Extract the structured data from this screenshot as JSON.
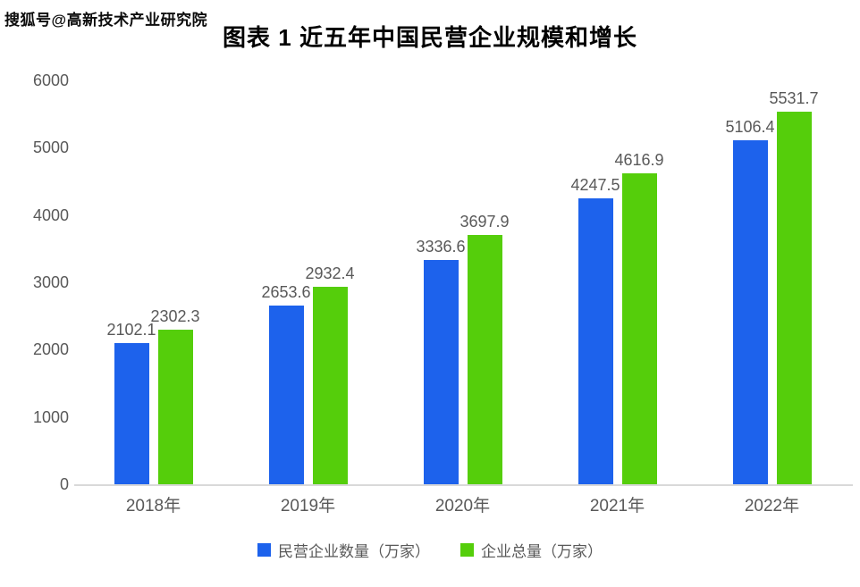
{
  "watermark": "搜狐号@高新技术产业研究院",
  "title": "图表 1 近五年中国民营企业规模和增长",
  "chart_data": {
    "type": "bar",
    "title": "图表 1 近五年中国民营企业规模和增长",
    "categories": [
      "2018年",
      "2019年",
      "2020年",
      "2021年",
      "2022年"
    ],
    "series": [
      {
        "name": "民营企业数量（万家）",
        "color": "#1d62ec",
        "values": [
          2102.1,
          2653.6,
          3336.6,
          4247.5,
          5106.4
        ]
      },
      {
        "name": "企业总量（万家）",
        "color": "#55ce0b",
        "values": [
          2302.3,
          2932.4,
          3697.9,
          4616.9,
          5531.7
        ]
      }
    ],
    "xlabel": "",
    "ylabel": "",
    "ylim": [
      0,
      6000
    ],
    "yticks": [
      0,
      1000,
      2000,
      3000,
      4000,
      5000,
      6000
    ],
    "grid": false,
    "data_labels": true,
    "legend_position": "bottom"
  },
  "colors": {
    "axis_line": "#d9d9d9",
    "tick_text": "#595959",
    "data_label_text": "#595959",
    "title_text": "#000000",
    "background": "#ffffff"
  }
}
